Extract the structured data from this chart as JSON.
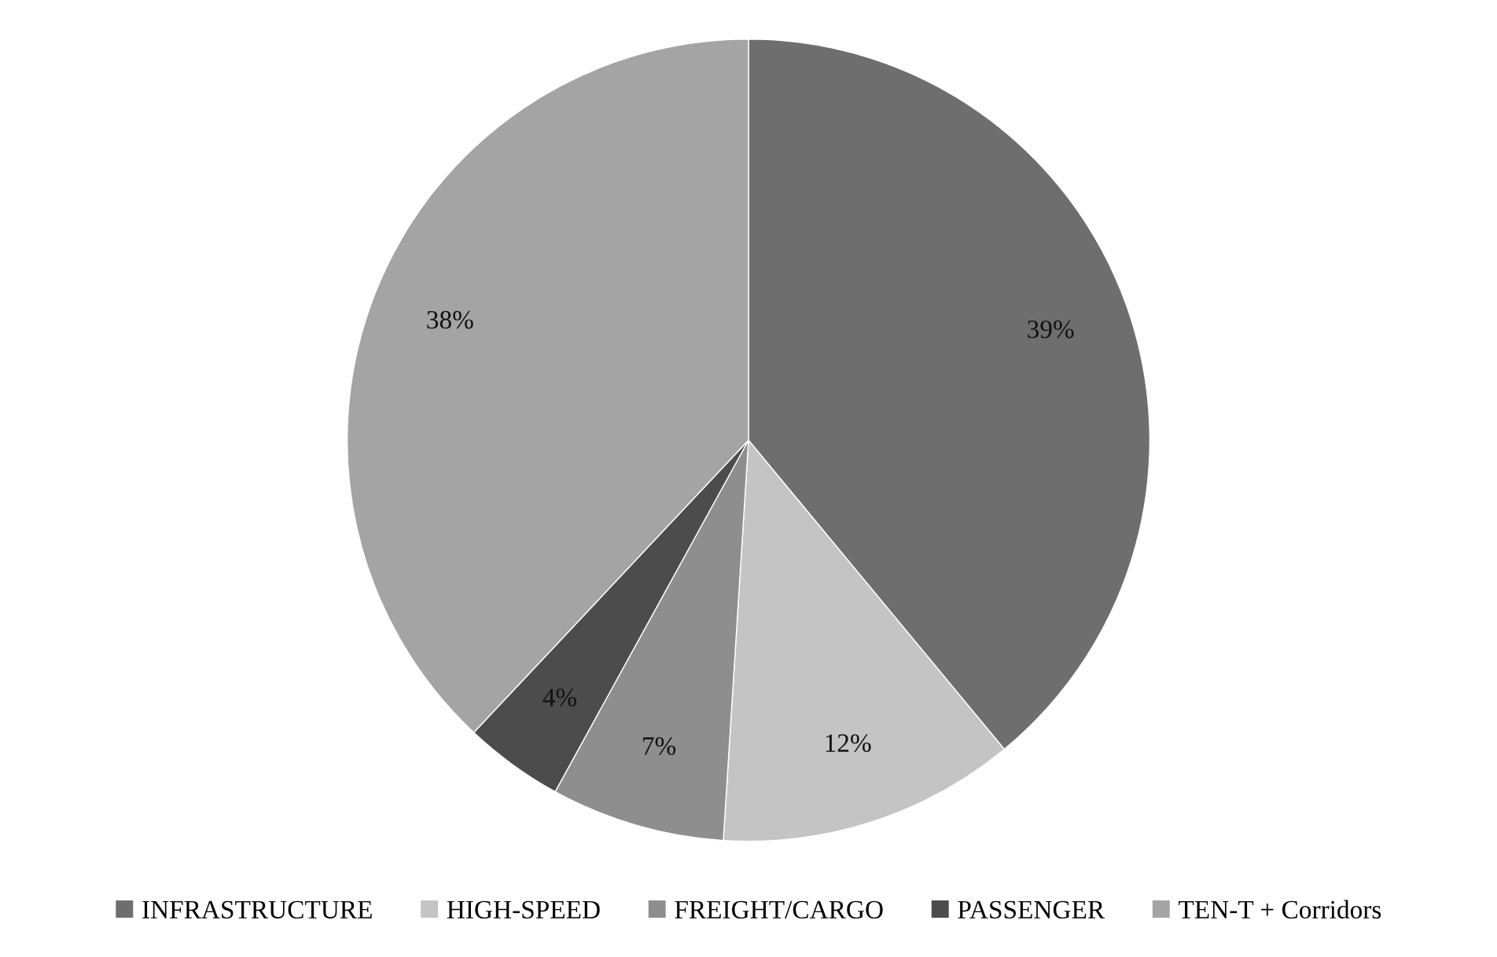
{
  "chart_data": {
    "type": "pie",
    "categories": [
      "INFRASTRUCTURE",
      "HIGH-SPEED",
      "FREIGHT/CARGO",
      "PASSENGER",
      "TEN-T + Corridors"
    ],
    "values": [
      39,
      12,
      7,
      4,
      38
    ],
    "colors": [
      "#6e6e6e",
      "#c4c4c4",
      "#8e8e8e",
      "#4c4c4c",
      "#a4a4a4"
    ],
    "value_labels": [
      "39%",
      "12%",
      "7%",
      "4%",
      "38%"
    ],
    "legend": "bottom"
  }
}
